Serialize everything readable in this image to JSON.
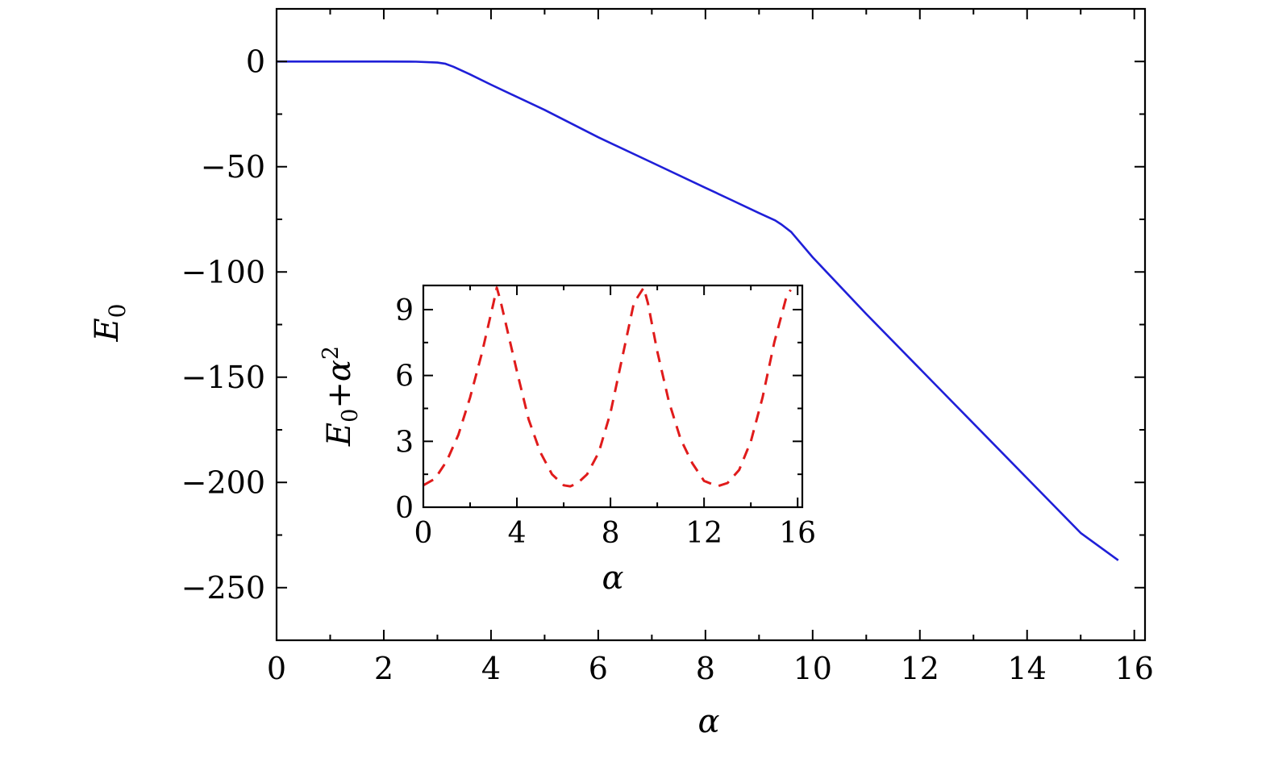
{
  "chart_data": [
    {
      "type": "line",
      "role": "main",
      "xlabel": "α",
      "ylabel": "E",
      "ylabel_sub": "0",
      "xlim": [
        0,
        16.2
      ],
      "ylim": [
        -275,
        25
      ],
      "xticks": [
        0,
        2,
        4,
        6,
        8,
        10,
        12,
        14,
        16
      ],
      "xticks_minor": [
        1,
        3,
        5,
        7,
        9,
        11,
        13,
        15
      ],
      "yticks": [
        0,
        -50,
        -100,
        -150,
        -200,
        -250
      ],
      "yticks_minor": [
        -25,
        -75,
        -125,
        -175,
        -225
      ],
      "xtick_labels": [
        "0",
        "2",
        "4",
        "6",
        "8",
        "10",
        "12",
        "14",
        "16"
      ],
      "ytick_labels": [
        "0",
        "−50",
        "−100",
        "−150",
        "−200",
        "−250"
      ],
      "grid": false,
      "series": [
        {
          "color": "#1f1fd8",
          "style": "solid",
          "x": [
            0,
            1,
            2,
            2.6,
            3.0,
            3.14,
            3.3,
            3.6,
            4,
            5,
            6,
            7,
            8,
            8.5,
            9.0,
            9.3,
            9.42,
            9.6,
            10,
            11,
            12,
            13,
            14,
            15,
            15.7
          ],
          "y": [
            0,
            0,
            0,
            -0.1,
            -0.5,
            -1.0,
            -2.5,
            -6,
            -11,
            -23,
            -36,
            -48,
            -60,
            -66,
            -72,
            -75.5,
            -77.5,
            -81,
            -93,
            -120,
            -146,
            -172,
            -198,
            -224,
            -237
          ]
        }
      ]
    },
    {
      "type": "line",
      "role": "inset",
      "xlabel": "α",
      "ylabel": "E",
      "ylabel_sub": "0",
      "ylabel_suffix": "+α",
      "ylabel_sup": "2",
      "xlim": [
        0,
        16.2
      ],
      "ylim": [
        0,
        10.1
      ],
      "xticks": [
        0,
        4,
        8,
        12,
        16
      ],
      "xticks_minor": [
        2,
        6,
        10,
        14
      ],
      "yticks": [
        0,
        3,
        6,
        9
      ],
      "yticks_minor": [
        1.5,
        4.5,
        7.5
      ],
      "xtick_labels": [
        "0",
        "4",
        "8",
        "12",
        "16"
      ],
      "ytick_labels": [
        "0",
        "3",
        "6",
        "9"
      ],
      "grid": false,
      "series": [
        {
          "color": "#e01b1b",
          "style": "dashed",
          "x": [
            0,
            0.5,
            1,
            1.5,
            2,
            2.5,
            3.0,
            3.14,
            3.3,
            4,
            4.5,
            5,
            5.5,
            6,
            6.28,
            6.6,
            7,
            7.5,
            8,
            8.5,
            9.0,
            9.42,
            9.6,
            10,
            10.5,
            11,
            11.5,
            12,
            12.57,
            13,
            13.5,
            14,
            14.5,
            15,
            15.5,
            15.7
          ],
          "y": [
            1.0,
            1.3,
            2.1,
            3.3,
            5.0,
            7.0,
            9.3,
            10.0,
            9.4,
            6.2,
            4.0,
            2.5,
            1.5,
            1.0,
            0.95,
            1.1,
            1.5,
            2.5,
            4.3,
            6.8,
            9.3,
            10.0,
            9.3,
            7.1,
            4.8,
            3.1,
            2.0,
            1.2,
            0.95,
            1.1,
            1.7,
            3.0,
            5.0,
            7.5,
            9.5,
            9.9
          ]
        }
      ]
    }
  ]
}
